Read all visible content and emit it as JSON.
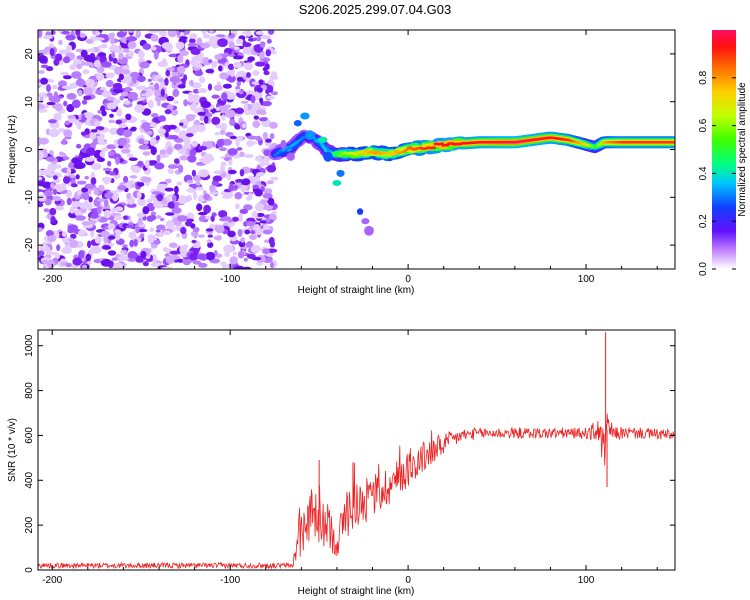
{
  "title": "S206.2025.299.07.04.G03",
  "chart_data": [
    {
      "type": "heatmap",
      "name": "spectrogram",
      "xlabel": "Height of straight line (km)",
      "ylabel": "Frequency (Hz)",
      "xlim": [
        -208,
        150
      ],
      "ylim": [
        -25,
        25
      ],
      "xticks": [
        -200,
        -100,
        0,
        100
      ],
      "yticks": [
        -20,
        -10,
        0,
        10,
        20
      ],
      "colorbar": {
        "label": "Normalized spectral amplitude",
        "range": [
          0,
          1
        ],
        "ticks": [
          0.0,
          0.2,
          0.4,
          0.6,
          0.8
        ],
        "tick_labels": [
          "0.0",
          "0.2",
          "0.4",
          "0.6",
          "0.8"
        ]
      },
      "noise_region_x": [
        -208,
        -75
      ],
      "ridge": {
        "x": [
          -75,
          -65,
          -58,
          -50,
          -45,
          -40,
          -30,
          -20,
          -10,
          0,
          10,
          20,
          40,
          60,
          80,
          90,
          100,
          105,
          110,
          120,
          150
        ],
        "freq": [
          -1,
          0.5,
          3,
          1.5,
          -0.5,
          -1,
          -1,
          -0.5,
          -1,
          0,
          0.5,
          1,
          1.5,
          1.5,
          2.5,
          2,
          1,
          0.5,
          1.5,
          1.5,
          1.5
        ],
        "amp": [
          0.3,
          0.35,
          0.3,
          0.35,
          0.4,
          0.55,
          0.7,
          0.8,
          0.75,
          0.85,
          0.9,
          0.95,
          0.95,
          1.0,
          0.95,
          0.9,
          0.7,
          0.5,
          0.8,
          0.9,
          0.9
        ]
      }
    },
    {
      "type": "line",
      "name": "snr",
      "xlabel": "Height of straight line (km)",
      "ylabel": "SNR (10 * v/v)",
      "xlim": [
        -208,
        150
      ],
      "ylim": [
        0,
        1070
      ],
      "xticks": [
        -200,
        -100,
        0,
        100
      ],
      "yticks": [
        0,
        200,
        400,
        600,
        800,
        1000
      ],
      "color": "#ee2222",
      "envelope": {
        "x": [
          -208,
          -65,
          -62,
          -55,
          -50,
          -45,
          -40,
          -35,
          -30,
          -25,
          -20,
          -10,
          0,
          10,
          20,
          30,
          40,
          60,
          80,
          100,
          108,
          110,
          112,
          115,
          130,
          150
        ],
        "mean": [
          20,
          20,
          120,
          250,
          200,
          200,
          120,
          250,
          300,
          300,
          330,
          380,
          450,
          510,
          560,
          600,
          610,
          610,
          610,
          610,
          620,
          500,
          640,
          610,
          610,
          600
        ],
        "noise": [
          12,
          12,
          80,
          120,
          100,
          100,
          70,
          120,
          110,
          100,
          100,
          90,
          80,
          70,
          50,
          30,
          25,
          25,
          25,
          25,
          60,
          120,
          80,
          30,
          25,
          25
        ]
      },
      "spikes": [
        {
          "x": 111,
          "y": 1060
        },
        {
          "x": 111.8,
          "y": 370
        },
        {
          "x": -50,
          "y": 490
        },
        {
          "x": -31,
          "y": 480
        }
      ]
    }
  ]
}
